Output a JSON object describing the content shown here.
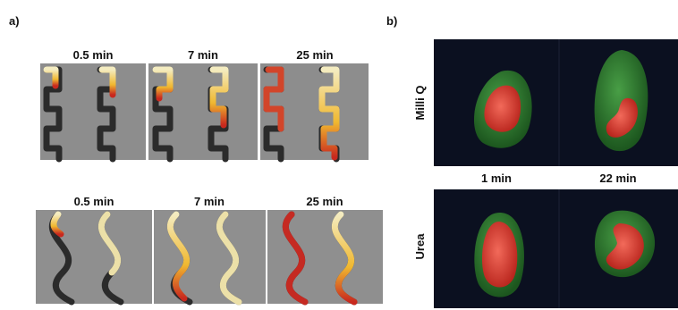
{
  "panel_a": {
    "label": "a)",
    "top_row": {
      "times": [
        "0.5 min",
        "7 min",
        "25 min"
      ]
    },
    "bottom_row": {
      "times": [
        "0.5 min",
        "7 min",
        "25 min"
      ]
    }
  },
  "panel_b": {
    "label": "b)",
    "rows": [
      "Milli Q",
      "Urea"
    ],
    "columns": [
      "1 min",
      "22 min"
    ]
  }
}
